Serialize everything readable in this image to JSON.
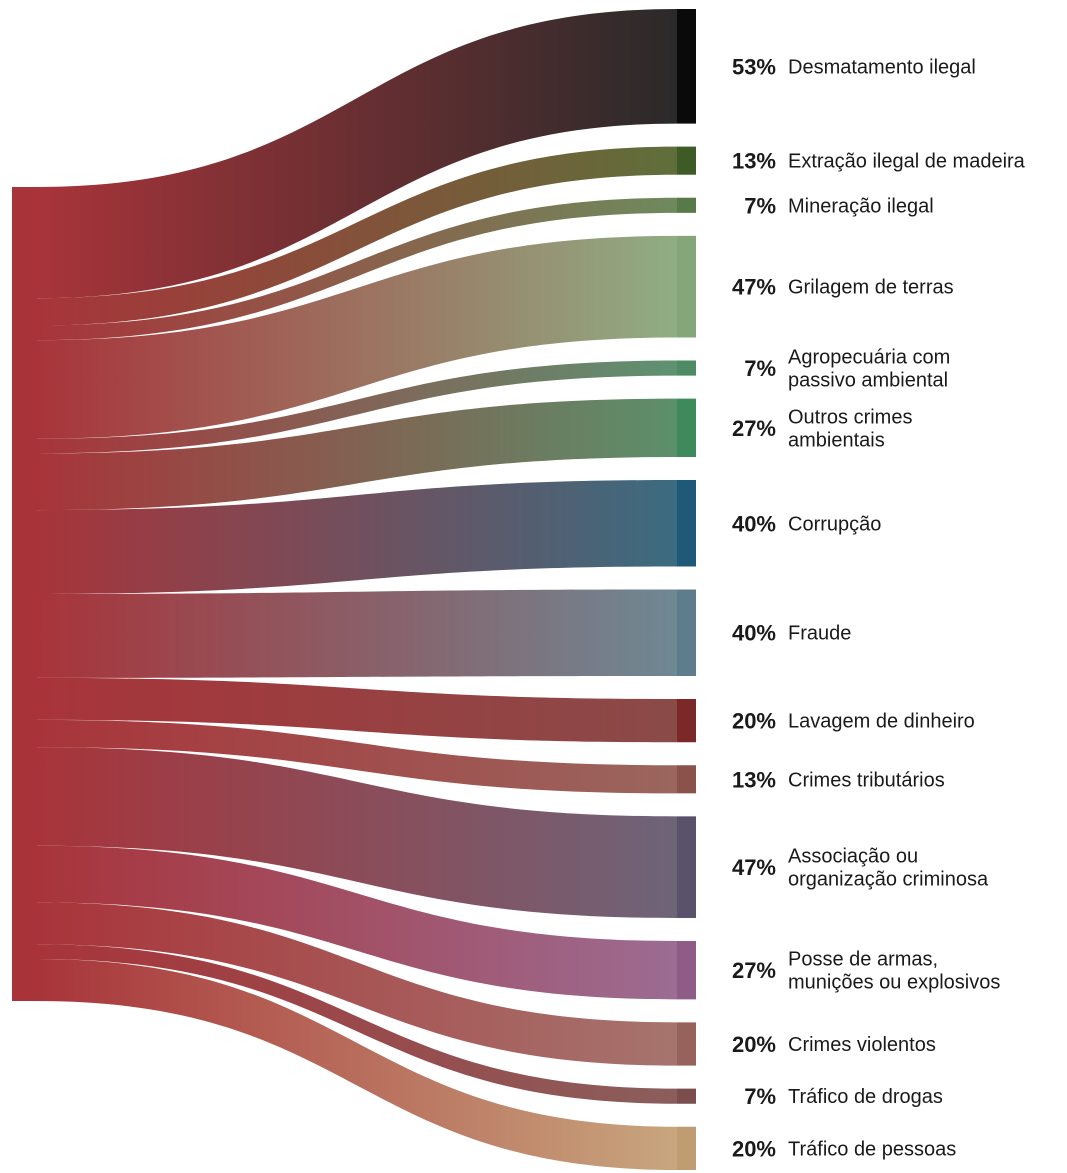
{
  "chart_data": {
    "type": "sankey",
    "title": "",
    "source": {
      "color": "#a8343a"
    },
    "flows": [
      {
        "value": 53,
        "pct_label": "53%",
        "label_lines": [
          "Desmatamento ilegal"
        ],
        "color": "#2a2a2a",
        "bar_color": "#0a0a0a"
      },
      {
        "value": 13,
        "pct_label": "13%",
        "label_lines": [
          "Extração ilegal de madeira"
        ],
        "color": "#5f6f3a",
        "bar_color": "#3e5a26"
      },
      {
        "value": 7,
        "pct_label": "7%",
        "label_lines": [
          "Mineração ilegal"
        ],
        "color": "#6e8a5c",
        "bar_color": "#587a48"
      },
      {
        "value": 47,
        "pct_label": "47%",
        "label_lines": [
          "Grilagem de terras"
        ],
        "color": "#90ad84",
        "bar_color": "#84a678"
      },
      {
        "value": 7,
        "pct_label": "7%",
        "label_lines": [
          "Agropecuária com",
          "passivo ambiental"
        ],
        "color": "#5e9272",
        "bar_color": "#4e8a64"
      },
      {
        "value": 27,
        "pct_label": "27%",
        "label_lines": [
          "Outros crimes",
          "ambientais"
        ],
        "color": "#5b906a",
        "bar_color": "#3f8a5a"
      },
      {
        "value": 40,
        "pct_label": "40%",
        "label_lines": [
          "Corrupção"
        ],
        "color": "#3b6b80",
        "bar_color": "#1e5a78"
      },
      {
        "value": 40,
        "pct_label": "40%",
        "label_lines": [
          "Fraude"
        ],
        "color": "#6e8894",
        "bar_color": "#5e7c8c"
      },
      {
        "value": 20,
        "pct_label": "20%",
        "label_lines": [
          "Lavagem de dinheiro"
        ],
        "color": "#8a4a48",
        "bar_color": "#7a2828"
      },
      {
        "value": 13,
        "pct_label": "13%",
        "label_lines": [
          "Crimes tributários"
        ],
        "color": "#9a665e",
        "bar_color": "#8a524a"
      },
      {
        "value": 47,
        "pct_label": "47%",
        "label_lines": [
          "Associação ou",
          "organização criminosa"
        ],
        "color": "#6e6478",
        "bar_color": "#5a526a"
      },
      {
        "value": 27,
        "pct_label": "27%",
        "label_lines": [
          "Posse de armas,",
          "munições ou explosivos"
        ],
        "color": "#9c6c92",
        "bar_color": "#8e5c86"
      },
      {
        "value": 20,
        "pct_label": "20%",
        "label_lines": [
          "Crimes violentos"
        ],
        "color": "#a6746e",
        "bar_color": "#98625c"
      },
      {
        "value": 7,
        "pct_label": "7%",
        "label_lines": [
          "Tráfico de drogas"
        ],
        "color": "#8a5e5c",
        "bar_color": "#7a4e4c"
      },
      {
        "value": 20,
        "pct_label": "20%",
        "label_lines": [
          "Tráfico de pessoas"
        ],
        "color": "#c8a67e",
        "bar_color": "#c09c72"
      }
    ]
  }
}
